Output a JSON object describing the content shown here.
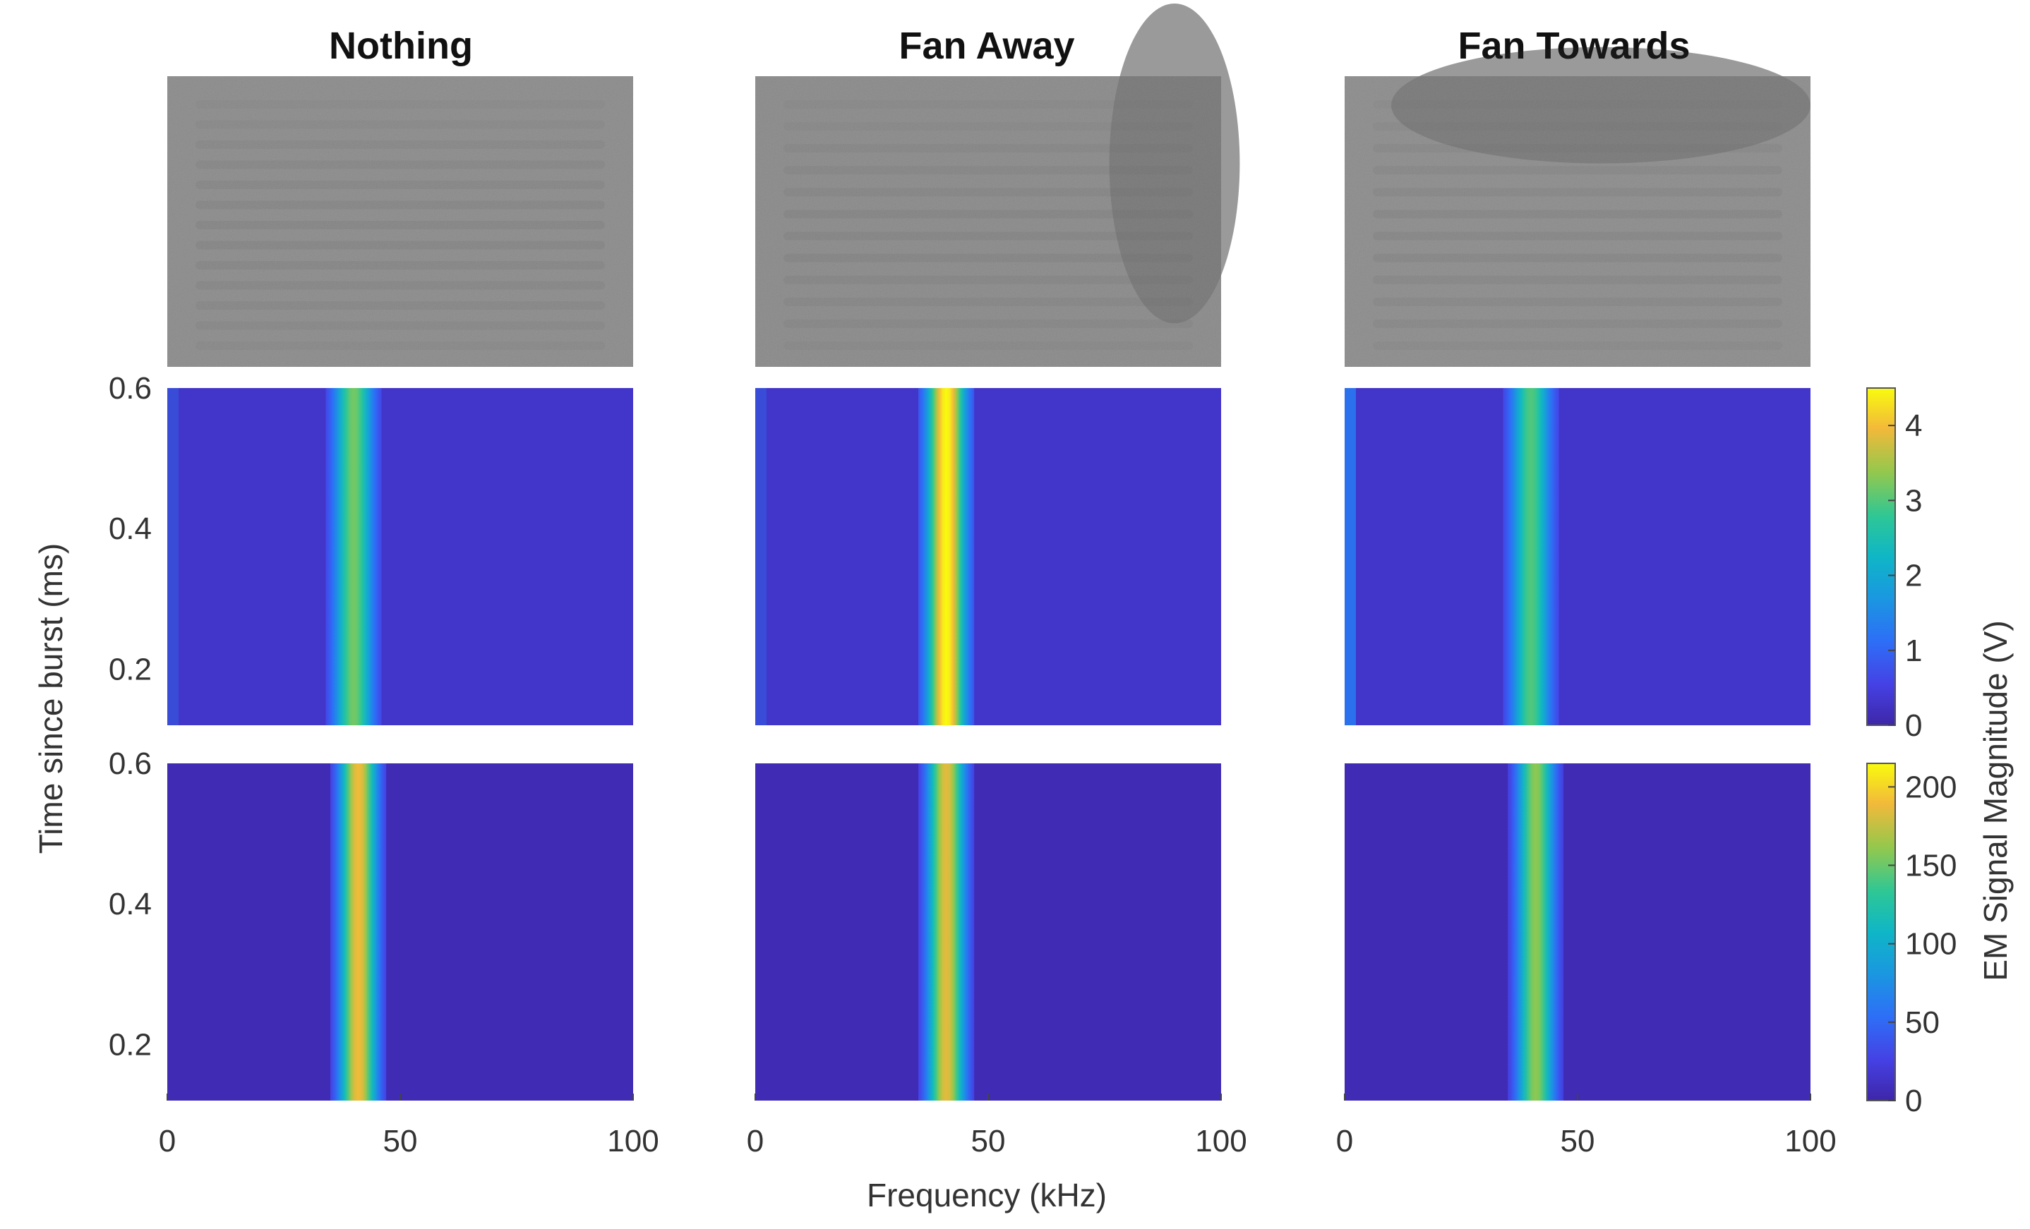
{
  "chart_data": {
    "type": "heatmap",
    "layout": "3 columns x 3 rows of panels",
    "panel_titles": [
      "Nothing",
      "Fan Away",
      "Fan Towards"
    ],
    "xlabel": "Frequency (kHz)",
    "ylabel": "Time since burst (ms)",
    "colorbar_label": "EM Signal Magnitude (V)",
    "xlim": [
      0,
      100
    ],
    "xticks": [
      "0",
      "50",
      "100"
    ],
    "ylim": [
      0.12,
      0.6
    ],
    "yticks": [
      "0.2",
      "0.4",
      "0.6"
    ],
    "rows": [
      {
        "kind": "grayscale photograph (schlieren image)",
        "colormap": "gray",
        "has_axes": false
      },
      {
        "kind": "measured spectrogram",
        "colormap": "parula",
        "clim": [
          0,
          4.5
        ],
        "colorbar_ticks": [
          "0",
          "1",
          "2",
          "3",
          "4"
        ]
      },
      {
        "kind": "simulated spectrogram",
        "colormap": "parula",
        "clim": [
          0,
          215
        ],
        "colorbar_ticks": [
          "0",
          "50",
          "100",
          "150",
          "200"
        ]
      }
    ],
    "series": [
      {
        "row": "measured",
        "panel": "Nothing",
        "peak_frequency_khz": 40,
        "peak_magnitude_v": 3.2,
        "background_v": 0.3
      },
      {
        "row": "measured",
        "panel": "Fan Away",
        "peak_frequency_khz": 41,
        "peak_magnitude_v": 4.5,
        "background_v": 0.3
      },
      {
        "row": "measured",
        "panel": "Fan Towards",
        "peak_frequency_khz": 40,
        "peak_magnitude_v": 3.0,
        "background_v": 0.3
      },
      {
        "row": "simulated",
        "panel": "Nothing",
        "peak_frequency_khz": 41,
        "peak_magnitude": 190,
        "background": 5
      },
      {
        "row": "simulated",
        "panel": "Fan Away",
        "peak_frequency_khz": 41,
        "peak_magnitude": 185,
        "background": 5
      },
      {
        "row": "simulated",
        "panel": "Fan Towards",
        "peak_frequency_khz": 41,
        "peak_magnitude": 160,
        "background": 5
      }
    ]
  }
}
